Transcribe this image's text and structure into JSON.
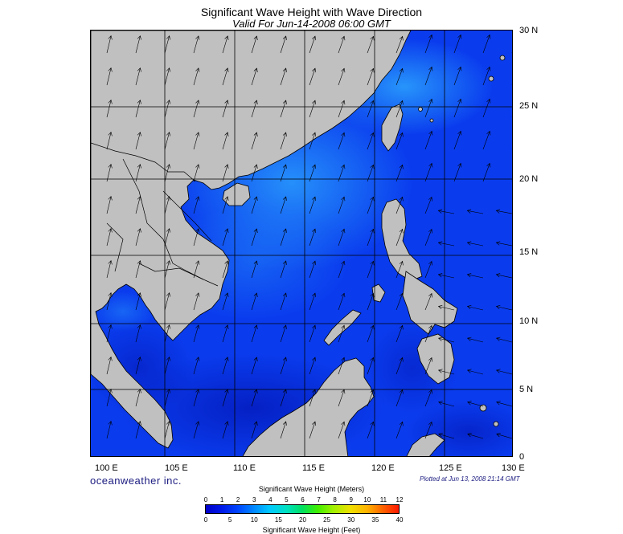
{
  "title": "Significant Wave Height with Wave Direction",
  "subtitle": "Valid For Jun-14-2008 06:00 GMT",
  "longitude_labels": [
    "100 E",
    "105 E",
    "110 E",
    "115 E",
    "120 E",
    "125 E",
    "130 E"
  ],
  "latitude_labels": [
    "30 N",
    "25 N",
    "20 N",
    "15 N",
    "10 N",
    "5 N",
    "0"
  ],
  "brand": "oceanweather inc.",
  "plotted": "Plotted at Jun 13, 2008 21:14 GMT",
  "legend": {
    "meters_title": "Significant Wave Height (Meters)",
    "meters_ticks": [
      "0",
      "1",
      "2",
      "3",
      "4",
      "5",
      "6",
      "7",
      "8",
      "9",
      "10",
      "11",
      "12"
    ],
    "feet_title": "Significant Wave Height (Feet)",
    "feet_ticks": [
      "0",
      "5",
      "10",
      "15",
      "20",
      "25",
      "30",
      "35",
      "40"
    ]
  },
  "colors": {
    "land": "#c0c0c0",
    "sea_base": "#0030e8",
    "sea_calm": "#0010c0",
    "sea_high": "#2090ff"
  }
}
